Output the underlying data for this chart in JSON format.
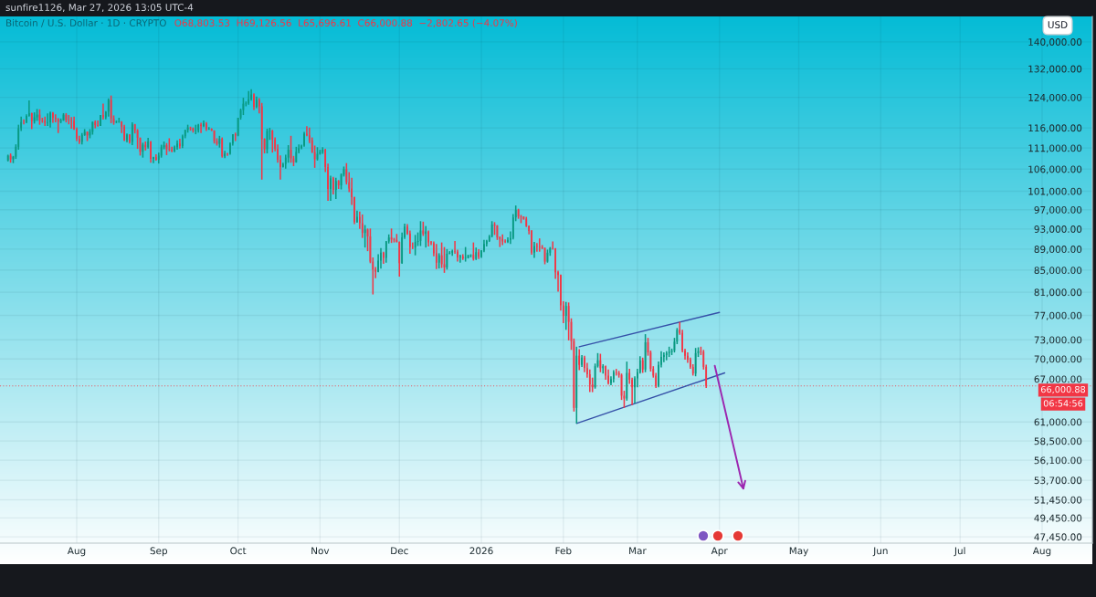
{
  "chart_data": {
    "type": "candlestick",
    "title": "Bitcoin / U.S. Dollar · 1D · CRYPTO",
    "subtitle": "O68,803.53  H69,126.56  L65,696.61  C66,000.88  −2,802.65 (−4.07%)",
    "ylabel": "USD",
    "annotations": [
      "sunfire1126, Mar 27, 2026 13:05 UTC-4",
      "06:54:56"
    ],
    "x": [
      "2025-07-06",
      "2025-07-07",
      "2025-07-08",
      "2025-07-09",
      "2025-07-10",
      "2025-07-11",
      "2025-07-12",
      "2025-07-13",
      "2025-07-14",
      "2025-07-15",
      "2025-07-16",
      "2025-07-17",
      "2025-07-18",
      "2025-07-19",
      "2025-07-20",
      "2025-07-21",
      "2025-07-22",
      "2025-07-23",
      "2025-07-24",
      "2025-07-25",
      "2025-07-26",
      "2025-07-27",
      "2025-07-28",
      "2025-07-29",
      "2025-07-30",
      "2025-07-31",
      "2025-08-01",
      "2025-08-02",
      "2025-08-03",
      "2025-08-04",
      "2025-08-05",
      "2025-08-06",
      "2025-08-07",
      "2025-08-08",
      "2025-08-09",
      "2025-08-10",
      "2025-08-11",
      "2025-08-12",
      "2025-08-13",
      "2025-08-14",
      "2025-08-15",
      "2025-08-16",
      "2025-08-17",
      "2025-08-18",
      "2025-08-19",
      "2025-08-20",
      "2025-08-21",
      "2025-08-22",
      "2025-08-23",
      "2025-08-24",
      "2025-08-25",
      "2025-08-26",
      "2025-08-27",
      "2025-08-28",
      "2025-08-29",
      "2025-08-30",
      "2025-08-31",
      "2025-09-01",
      "2025-09-02",
      "2025-09-03",
      "2025-09-04",
      "2025-09-05",
      "2025-09-06",
      "2025-09-07",
      "2025-09-08",
      "2025-09-09",
      "2025-09-10",
      "2025-09-11",
      "2025-09-12",
      "2025-09-13",
      "2025-09-14",
      "2025-09-15",
      "2025-09-16",
      "2025-09-17",
      "2025-09-18",
      "2025-09-19",
      "2025-09-20",
      "2025-09-21",
      "2025-09-22",
      "2025-09-23",
      "2025-09-24",
      "2025-09-25",
      "2025-09-26",
      "2025-09-27",
      "2025-09-28",
      "2025-09-29",
      "2025-09-30",
      "2025-10-01",
      "2025-10-02",
      "2025-10-03",
      "2025-10-04",
      "2025-10-05",
      "2025-10-06",
      "2025-10-07",
      "2025-10-08",
      "2025-10-09",
      "2025-10-10",
      "2025-10-11",
      "2025-10-12",
      "2025-10-13",
      "2025-10-14",
      "2025-10-15",
      "2025-10-16",
      "2025-10-17",
      "2025-10-18",
      "2025-10-19",
      "2025-10-20",
      "2025-10-21",
      "2025-10-22",
      "2025-10-23",
      "2025-10-24",
      "2025-10-25",
      "2025-10-26",
      "2025-10-27",
      "2025-10-28",
      "2025-10-29",
      "2025-10-30",
      "2025-10-31",
      "2025-11-01",
      "2025-11-02",
      "2025-11-03",
      "2025-11-04",
      "2025-11-05",
      "2025-11-06",
      "2025-11-07",
      "2025-11-08",
      "2025-11-09",
      "2025-11-10",
      "2025-11-11",
      "2025-11-12",
      "2025-11-13",
      "2025-11-14",
      "2025-11-15",
      "2025-11-16",
      "2025-11-17",
      "2025-11-18",
      "2025-11-19",
      "2025-11-20",
      "2025-11-21",
      "2025-11-22",
      "2025-11-23",
      "2025-11-24",
      "2025-11-25",
      "2025-11-26",
      "2025-11-27",
      "2025-11-28",
      "2025-11-29",
      "2025-11-30",
      "2025-12-01",
      "2025-12-02",
      "2025-12-03",
      "2025-12-04",
      "2025-12-05",
      "2025-12-06",
      "2025-12-07",
      "2025-12-08",
      "2025-12-09",
      "2025-12-10",
      "2025-12-11",
      "2025-12-12",
      "2025-12-13",
      "2025-12-14",
      "2025-12-15",
      "2025-12-16",
      "2025-12-17",
      "2025-12-18",
      "2025-12-19",
      "2025-12-20",
      "2025-12-21",
      "2025-12-22",
      "2025-12-23",
      "2025-12-24",
      "2025-12-25",
      "2025-12-26",
      "2025-12-27",
      "2025-12-28",
      "2025-12-29",
      "2025-12-30",
      "2025-12-31",
      "2026-01-01",
      "2026-01-02",
      "2026-01-03",
      "2026-01-04",
      "2026-01-05",
      "2026-01-06",
      "2026-01-07",
      "2026-01-08",
      "2026-01-09",
      "2026-01-10",
      "2026-01-11",
      "2026-01-12",
      "2026-01-13",
      "2026-01-14",
      "2026-01-15",
      "2026-01-16",
      "2026-01-17",
      "2026-01-18",
      "2026-01-19",
      "2026-01-20",
      "2026-01-21",
      "2026-01-22",
      "2026-01-23",
      "2026-01-24",
      "2026-01-25",
      "2026-01-26",
      "2026-01-27",
      "2026-01-28",
      "2026-01-29",
      "2026-01-30",
      "2026-01-31",
      "2026-02-01",
      "2026-02-02",
      "2026-02-03",
      "2026-02-04",
      "2026-02-05",
      "2026-02-06",
      "2026-02-07",
      "2026-02-08",
      "2026-02-09",
      "2026-02-10",
      "2026-02-11",
      "2026-02-12",
      "2026-02-13",
      "2026-02-14",
      "2026-02-15",
      "2026-02-16",
      "2026-02-17",
      "2026-02-18",
      "2026-02-19",
      "2026-02-20",
      "2026-02-21",
      "2026-02-22",
      "2026-02-23",
      "2026-02-24",
      "2026-02-25",
      "2026-02-26",
      "2026-02-27",
      "2026-02-28",
      "2026-03-01",
      "2026-03-02",
      "2026-03-03",
      "2026-03-04",
      "2026-03-05",
      "2026-03-06",
      "2026-03-07",
      "2026-03-08",
      "2026-03-09",
      "2026-03-10",
      "2026-03-11",
      "2026-03-12",
      "2026-03-13",
      "2026-03-14",
      "2026-03-15",
      "2026-03-16",
      "2026-03-17",
      "2026-03-18",
      "2026-03-19",
      "2026-03-20",
      "2026-03-21",
      "2026-03-22",
      "2026-03-23",
      "2026-03-24",
      "2026-03-25",
      "2026-03-26",
      "2026-03-27"
    ],
    "ohlc": [
      [
        108000,
        109400,
        107800,
        109200
      ],
      [
        109200,
        109700,
        107500,
        108300
      ],
      [
        108300,
        109100,
        107400,
        108900
      ],
      [
        108900,
        111900,
        108400,
        111300
      ],
      [
        111300,
        116800,
        110600,
        115900
      ],
      [
        115900,
        118900,
        115200,
        117500
      ],
      [
        117500,
        118200,
        116900,
        117400
      ],
      [
        117400,
        119500,
        117200,
        119100
      ],
      [
        119100,
        123200,
        118900,
        119800
      ],
      [
        119800,
        119900,
        115700,
        117700
      ],
      [
        117700,
        120000,
        117100,
        118700
      ],
      [
        118700,
        120900,
        117800,
        119400
      ],
      [
        119400,
        120800,
        116800,
        117900
      ],
      [
        117900,
        118600,
        117300,
        117800
      ],
      [
        117800,
        118900,
        116500,
        117300
      ],
      [
        117300,
        119700,
        116500,
        117400
      ],
      [
        117400,
        120200,
        116100,
        119900
      ],
      [
        119900,
        120100,
        117300,
        118600
      ],
      [
        118600,
        119500,
        117400,
        118300
      ],
      [
        118300,
        118500,
        114700,
        117600
      ],
      [
        117600,
        118400,
        117200,
        117900
      ],
      [
        117900,
        119800,
        117800,
        119400
      ],
      [
        119400,
        119800,
        117400,
        118000
      ],
      [
        118000,
        119300,
        116900,
        117900
      ],
      [
        117900,
        118800,
        115800,
        117800
      ],
      [
        117800,
        118900,
        115500,
        115700
      ],
      [
        115700,
        116100,
        112700,
        113300
      ],
      [
        113300,
        114000,
        112000,
        112500
      ],
      [
        112500,
        114700,
        111900,
        114200
      ],
      [
        114200,
        115700,
        114000,
        115000
      ],
      [
        115000,
        115100,
        112700,
        114100
      ],
      [
        114100,
        115700,
        113400,
        115000
      ],
      [
        115000,
        117600,
        114300,
        117500
      ],
      [
        117500,
        117900,
        115900,
        116700
      ],
      [
        116700,
        117900,
        116300,
        116500
      ],
      [
        116500,
        119300,
        116500,
        119300
      ],
      [
        119300,
        122300,
        118100,
        118700
      ],
      [
        118700,
        120300,
        118200,
        120200
      ],
      [
        120200,
        123700,
        118900,
        123300
      ],
      [
        123300,
        124500,
        117200,
        118400
      ],
      [
        118400,
        119200,
        116800,
        117400
      ],
      [
        117400,
        117900,
        117200,
        117500
      ],
      [
        117500,
        118600,
        117300,
        117600
      ],
      [
        117600,
        117700,
        114700,
        116300
      ],
      [
        116300,
        116800,
        112700,
        112900
      ],
      [
        112900,
        114600,
        112400,
        114300
      ],
      [
        114300,
        114400,
        112100,
        112500
      ],
      [
        112500,
        117400,
        111700,
        116900
      ],
      [
        116900,
        117000,
        114600,
        115400
      ],
      [
        115400,
        115700,
        110800,
        113500
      ],
      [
        113500,
        113600,
        109200,
        110100
      ],
      [
        110100,
        112300,
        108700,
        111800
      ],
      [
        111800,
        112600,
        110400,
        111200
      ],
      [
        111200,
        113500,
        110900,
        112600
      ],
      [
        112600,
        112700,
        107500,
        108400
      ],
      [
        108400,
        108900,
        107400,
        108800
      ],
      [
        108800,
        109500,
        108000,
        108200
      ],
      [
        108200,
        109900,
        107300,
        109200
      ],
      [
        109200,
        111800,
        108700,
        111200
      ],
      [
        111200,
        112600,
        110700,
        111700
      ],
      [
        111700,
        112200,
        109300,
        110700
      ],
      [
        110700,
        113400,
        110200,
        110600
      ],
      [
        110600,
        111300,
        110000,
        110200
      ],
      [
        110200,
        111600,
        110000,
        111200
      ],
      [
        111200,
        112900,
        110600,
        112100
      ],
      [
        112100,
        113300,
        110900,
        111500
      ],
      [
        111500,
        114300,
        111000,
        113900
      ],
      [
        113900,
        115500,
        113400,
        115500
      ],
      [
        115500,
        116800,
        114800,
        116100
      ],
      [
        116100,
        116300,
        115300,
        115900
      ],
      [
        115900,
        116100,
        114800,
        115300
      ],
      [
        115300,
        116800,
        114400,
        115400
      ],
      [
        115400,
        117000,
        114800,
        116800
      ],
      [
        116800,
        117300,
        114700,
        116500
      ],
      [
        116500,
        117900,
        116200,
        117100
      ],
      [
        117100,
        117500,
        115200,
        115700
      ],
      [
        115700,
        116200,
        115500,
        115800
      ],
      [
        115800,
        115900,
        115200,
        115300
      ],
      [
        115300,
        115400,
        112100,
        112700
      ],
      [
        112700,
        113400,
        111600,
        112000
      ],
      [
        112000,
        114000,
        111100,
        113300
      ],
      [
        113300,
        113600,
        108700,
        109000
      ],
      [
        109000,
        110300,
        108600,
        109700
      ],
      [
        109700,
        109800,
        109100,
        109600
      ],
      [
        109600,
        112400,
        109400,
        112100
      ],
      [
        112100,
        114400,
        111600,
        114400
      ],
      [
        114400,
        114800,
        112700,
        114100
      ],
      [
        114100,
        118600,
        113900,
        118600
      ],
      [
        118600,
        121000,
        118100,
        120600
      ],
      [
        120600,
        123900,
        119300,
        122300
      ],
      [
        122300,
        122900,
        121600,
        122400
      ],
      [
        122400,
        125700,
        122000,
        123500
      ],
      [
        123500,
        126200,
        123100,
        124800
      ],
      [
        124800,
        125100,
        120600,
        121500
      ],
      [
        121500,
        124200,
        121100,
        123300
      ],
      [
        123300,
        123800,
        119700,
        121600
      ],
      [
        121600,
        122500,
        103600,
        113200
      ],
      [
        113200,
        113400,
        109700,
        110700
      ],
      [
        110700,
        115800,
        109700,
        115200
      ],
      [
        115200,
        116000,
        113000,
        115300
      ],
      [
        115300,
        115500,
        109900,
        113100
      ],
      [
        113100,
        113600,
        110200,
        110800
      ],
      [
        110800,
        111900,
        107500,
        108200
      ],
      [
        108200,
        109200,
        103600,
        106500
      ],
      [
        106500,
        107500,
        106400,
        107200
      ],
      [
        107200,
        109400,
        106100,
        108700
      ],
      [
        108700,
        111700,
        107500,
        110600
      ],
      [
        110600,
        114000,
        107500,
        108500
      ],
      [
        108500,
        109100,
        106700,
        107600
      ],
      [
        107600,
        111300,
        107500,
        110100
      ],
      [
        110100,
        111900,
        109700,
        111000
      ],
      [
        111000,
        111800,
        110700,
        111600
      ],
      [
        111600,
        115000,
        111300,
        114500
      ],
      [
        114500,
        116400,
        113900,
        114100
      ],
      [
        114100,
        116100,
        112200,
        112900
      ],
      [
        112900,
        113600,
        109800,
        110000
      ],
      [
        110000,
        111600,
        106300,
        108300
      ],
      [
        108300,
        111200,
        108000,
        109600
      ],
      [
        109600,
        110600,
        109400,
        110100
      ],
      [
        110100,
        111200,
        109600,
        110600
      ],
      [
        110600,
        110800,
        105300,
        106500
      ],
      [
        106500,
        107300,
        98900,
        101500
      ],
      [
        101500,
        104500,
        98900,
        103900
      ],
      [
        103900,
        104200,
        100300,
        101300
      ],
      [
        101300,
        104000,
        99300,
        103300
      ],
      [
        103300,
        103500,
        101500,
        102300
      ],
      [
        102300,
        105000,
        101400,
        104700
      ],
      [
        104700,
        106600,
        104300,
        106000
      ],
      [
        106000,
        107400,
        102500,
        103000
      ],
      [
        103000,
        105300,
        100800,
        101600
      ],
      [
        101600,
        104000,
        98000,
        99700
      ],
      [
        99700,
        99800,
        94000,
        94400
      ],
      [
        94400,
        96800,
        94300,
        95500
      ],
      [
        95500,
        96600,
        93000,
        94200
      ],
      [
        94200,
        96000,
        91200,
        92200
      ],
      [
        92200,
        93800,
        89300,
        92900
      ],
      [
        92900,
        93100,
        88600,
        91500
      ],
      [
        91500,
        93100,
        86300,
        86600
      ],
      [
        86600,
        87400,
        80600,
        85100
      ],
      [
        85100,
        85600,
        83500,
        84700
      ],
      [
        84700,
        88000,
        84600,
        86800
      ],
      [
        86800,
        89200,
        85300,
        88300
      ],
      [
        88300,
        88500,
        86200,
        87300
      ],
      [
        87300,
        90600,
        86400,
        90500
      ],
      [
        90500,
        91900,
        90100,
        91300
      ],
      [
        91300,
        93100,
        90200,
        90900
      ],
      [
        90900,
        91200,
        90300,
        90800
      ],
      [
        90800,
        92000,
        90300,
        90400
      ],
      [
        90400,
        90500,
        83800,
        86300
      ],
      [
        86300,
        92300,
        86200,
        91300
      ],
      [
        91300,
        94100,
        91000,
        93500
      ],
      [
        93500,
        94000,
        91800,
        92100
      ],
      [
        92100,
        92700,
        88100,
        89400
      ],
      [
        89400,
        90300,
        89000,
        89300
      ],
      [
        89300,
        91800,
        87800,
        90400
      ],
      [
        90400,
        92300,
        89600,
        90600
      ],
      [
        90600,
        94600,
        89600,
        92700
      ],
      [
        92700,
        94500,
        91600,
        92000
      ],
      [
        92000,
        93600,
        89300,
        92500
      ],
      [
        92500,
        92700,
        89500,
        90300
      ],
      [
        90300,
        90600,
        89800,
        90200
      ],
      [
        90200,
        90500,
        87600,
        88200
      ],
      [
        88200,
        90000,
        85200,
        86400
      ],
      [
        86400,
        88200,
        85300,
        87800
      ],
      [
        87800,
        90300,
        85400,
        86100
      ],
      [
        86100,
        89400,
        84500,
        85500
      ],
      [
        85500,
        89000,
        85100,
        88100
      ],
      [
        88100,
        88600,
        88000,
        88300
      ],
      [
        88300,
        88900,
        87700,
        88600
      ],
      [
        88600,
        90600,
        88100,
        88500
      ],
      [
        88500,
        88900,
        86600,
        87400
      ],
      [
        87400,
        87900,
        86400,
        87600
      ],
      [
        87600,
        88000,
        86900,
        87200
      ],
      [
        87200,
        89400,
        86600,
        87300
      ],
      [
        87300,
        87900,
        87200,
        87800
      ],
      [
        87800,
        88000,
        87400,
        87900
      ],
      [
        87900,
        90300,
        86800,
        87100
      ],
      [
        87100,
        89300,
        86900,
        88400
      ],
      [
        88400,
        89000,
        87100,
        87500
      ],
      [
        87500,
        88800,
        87300,
        88700
      ],
      [
        88700,
        90800,
        88400,
        90000
      ],
      [
        90000,
        90800,
        89500,
        90600
      ],
      [
        90600,
        91800,
        90400,
        91500
      ],
      [
        91500,
        94600,
        91300,
        93900
      ],
      [
        93900,
        94400,
        91800,
        93700
      ],
      [
        93700,
        93800,
        90800,
        91300
      ],
      [
        91300,
        91500,
        89400,
        91000
      ],
      [
        91000,
        91900,
        89800,
        90500
      ],
      [
        90500,
        90900,
        90200,
        90400
      ],
      [
        90400,
        91300,
        90200,
        90800
      ],
      [
        90800,
        92500,
        90000,
        91200
      ],
      [
        91200,
        96100,
        90900,
        95400
      ],
      [
        95400,
        97900,
        94600,
        97000
      ],
      [
        97000,
        97200,
        95100,
        95600
      ],
      [
        95600,
        95900,
        94200,
        95500
      ],
      [
        95500,
        95600,
        94900,
        95100
      ],
      [
        95100,
        95500,
        93400,
        93600
      ],
      [
        93600,
        93700,
        91900,
        92600
      ],
      [
        92600,
        92800,
        87900,
        88300
      ],
      [
        88300,
        90400,
        87300,
        89600
      ],
      [
        89600,
        90200,
        88500,
        89500
      ],
      [
        89500,
        91100,
        88500,
        89400
      ],
      [
        89400,
        89800,
        89000,
        89200
      ],
      [
        89200,
        89300,
        86100,
        86600
      ],
      [
        86600,
        88900,
        86400,
        88300
      ],
      [
        88300,
        89400,
        87700,
        89200
      ],
      [
        89200,
        90500,
        88900,
        89100
      ],
      [
        89100,
        89200,
        83400,
        84600
      ],
      [
        84600,
        84900,
        81100,
        84100
      ],
      [
        84100,
        84200,
        77800,
        78700
      ],
      [
        78700,
        79400,
        75700,
        76900
      ],
      [
        76900,
        79300,
        74600,
        78600
      ],
      [
        78600,
        79200,
        72900,
        75900
      ],
      [
        75900,
        76500,
        71400,
        72800
      ],
      [
        72800,
        73200,
        62400,
        62900
      ],
      [
        62900,
        71900,
        60800,
        70500
      ],
      [
        70500,
        71500,
        68300,
        69100
      ],
      [
        69100,
        70600,
        68800,
        70200
      ],
      [
        70200,
        70500,
        68000,
        68600
      ],
      [
        68600,
        69400,
        67200,
        67700
      ],
      [
        67700,
        68400,
        65100,
        66200
      ],
      [
        66200,
        67200,
        65100,
        65800
      ],
      [
        65800,
        69300,
        65600,
        68900
      ],
      [
        68900,
        70900,
        68700,
        69800
      ],
      [
        69800,
        70800,
        68000,
        68600
      ],
      [
        68600,
        69200,
        67800,
        68900
      ],
      [
        68900,
        69000,
        66900,
        67500
      ],
      [
        67500,
        68400,
        66200,
        66400
      ],
      [
        66400,
        67400,
        66100,
        67000
      ],
      [
        67000,
        68300,
        66500,
        68000
      ],
      [
        68000,
        68500,
        67500,
        67900
      ],
      [
        67900,
        68200,
        67200,
        67600
      ],
      [
        67600,
        67800,
        64000,
        64600
      ],
      [
        64600,
        65300,
        62900,
        64200
      ],
      [
        64200,
        69600,
        63900,
        67900
      ],
      [
        67900,
        68500,
        66300,
        66900
      ],
      [
        66900,
        67200,
        63300,
        65800
      ],
      [
        65800,
        67400,
        63500,
        67100
      ],
      [
        67100,
        68500,
        65800,
        68000
      ],
      [
        68000,
        70400,
        67800,
        69800
      ],
      [
        69800,
        70200,
        67900,
        68400
      ],
      [
        68400,
        73900,
        68000,
        72600
      ],
      [
        72600,
        73300,
        70500,
        71000
      ],
      [
        71000,
        71300,
        68100,
        68500
      ],
      [
        68500,
        68900,
        67200,
        67500
      ],
      [
        67500,
        67900,
        65700,
        66000
      ],
      [
        66000,
        69600,
        65800,
        69100
      ],
      [
        69100,
        71200,
        68700,
        70300
      ],
      [
        70300,
        71000,
        69500,
        70600
      ],
      [
        70600,
        71200,
        69800,
        70900
      ],
      [
        70900,
        71900,
        70300,
        71100
      ],
      [
        71100,
        71600,
        70600,
        71300
      ],
      [
        71300,
        73300,
        71000,
        72700
      ],
      [
        72700,
        74900,
        72300,
        74600
      ],
      [
        74600,
        75900,
        73800,
        74100
      ],
      [
        74100,
        74600,
        71000,
        71300
      ],
      [
        71300,
        71600,
        69900,
        70500
      ],
      [
        70500,
        71000,
        69400,
        69900
      ],
      [
        69900,
        70200,
        68500,
        68800
      ],
      [
        68800,
        69200,
        67500,
        67800
      ],
      [
        67800,
        71700,
        67400,
        70900
      ],
      [
        70900,
        71800,
        70300,
        71200
      ],
      [
        71200,
        71900,
        70600,
        71100
      ],
      [
        71100,
        71400,
        68400,
        68800
      ],
      [
        68803.53,
        69126.56,
        65696.61,
        66000.88
      ]
    ],
    "colors": [
      "#089981",
      "#f23645",
      "#089981",
      "#089981",
      "#089981",
      "#089981",
      "#f23645",
      "#089981",
      "#089981",
      "#f23645",
      "#089981",
      "#089981",
      "#f23645",
      "#f23645",
      "#f23645",
      "#089981",
      "#089981",
      "#f23645",
      "#f23645",
      "#f23645",
      "#089981",
      "#089981",
      "#f23645",
      "#f23645",
      "#f23645",
      "#f23645",
      "#f23645",
      "#f23645",
      "#089981",
      "#089981",
      "#f23645",
      "#089981",
      "#089981",
      "#f23645",
      "#f23645",
      "#089981",
      "#f23645",
      "#089981",
      "#089981",
      "#f23645",
      "#f23645",
      "#089981",
      "#089981",
      "#f23645",
      "#f23645",
      "#089981",
      "#f23645",
      "#089981",
      "#f23645",
      "#f23645",
      "#f23645",
      "#089981",
      "#f23645",
      "#089981",
      "#f23645",
      "#089981",
      "#f23645",
      "#089981",
      "#089981",
      "#089981",
      "#f23645",
      "#f23645",
      "#f23645",
      "#089981",
      "#089981",
      "#f23645",
      "#089981",
      "#089981",
      "#089981",
      "#f23645",
      "#f23645",
      "#089981",
      "#089981",
      "#f23645",
      "#089981",
      "#f23645",
      "#089981",
      "#f23645",
      "#f23645",
      "#f23645",
      "#089981",
      "#f23645",
      "#089981",
      "#f23645",
      "#089981",
      "#089981",
      "#f23645",
      "#089981",
      "#089981",
      "#089981",
      "#089981",
      "#089981",
      "#089981",
      "#f23645",
      "#089981",
      "#f23645",
      "#f23645",
      "#f23645",
      "#089981",
      "#089981",
      "#f23645",
      "#f23645",
      "#f23645",
      "#f23645",
      "#089981",
      "#089981",
      "#089981",
      "#f23645",
      "#f23645",
      "#089981",
      "#089981",
      "#089981",
      "#089981",
      "#f23645",
      "#f23645",
      "#f23645",
      "#f23645",
      "#089981",
      "#089981",
      "#089981",
      "#f23645",
      "#f23645",
      "#089981",
      "#f23645",
      "#089981",
      "#f23645",
      "#089981",
      "#089981",
      "#f23645",
      "#f23645",
      "#f23645",
      "#f23645",
      "#089981",
      "#f23645",
      "#f23645",
      "#089981",
      "#f23645",
      "#f23645",
      "#f23645",
      "#f23645",
      "#089981",
      "#089981",
      "#f23645",
      "#089981",
      "#089981",
      "#f23645",
      "#f23645",
      "#f23645",
      "#f23645",
      "#089981",
      "#089981",
      "#f23645",
      "#f23645",
      "#f23645",
      "#089981",
      "#089981",
      "#089981",
      "#f23645",
      "#089981",
      "#f23645",
      "#f23645",
      "#f23645",
      "#f23645",
      "#089981",
      "#f23645",
      "#f23645",
      "#089981",
      "#089981",
      "#089981",
      "#f23645",
      "#f23645",
      "#089981",
      "#f23645",
      "#089981",
      "#089981",
      "#089981",
      "#f23645",
      "#089981",
      "#f23645",
      "#089981",
      "#089981",
      "#089981",
      "#089981",
      "#089981",
      "#f23645",
      "#f23645",
      "#f23645",
      "#f23645",
      "#f23645",
      "#089981",
      "#089981",
      "#089981",
      "#089981",
      "#f23645",
      "#f23645",
      "#f23645",
      "#f23645",
      "#f23645",
      "#f23645",
      "#089981",
      "#f23645",
      "#f23645",
      "#f23645",
      "#f23645",
      "#089981",
      "#089981",
      "#f23645",
      "#f23645",
      "#f23645",
      "#f23645",
      "#f23645",
      "#089981",
      "#f23645",
      "#f23645",
      "#f23645",
      "#089981",
      "#f23645",
      "#089981",
      "#f23645",
      "#f23645",
      "#f23645",
      "#f23645",
      "#089981",
      "#089981",
      "#f23645",
      "#089981",
      "#f23645",
      "#f23645",
      "#089981",
      "#089981",
      "#f23645",
      "#f23645",
      "#f23645",
      "#f23645",
      "#089981",
      "#f23645",
      "#f23645",
      "#089981",
      "#089981",
      "#089981",
      "#f23645",
      "#089981",
      "#f23645",
      "#f23645",
      "#f23645",
      "#f23645",
      "#089981",
      "#089981",
      "#089981",
      "#089981",
      "#089981",
      "#089981",
      "#089981",
      "#089981",
      "#f23645",
      "#f23645",
      "#f23645",
      "#f23645",
      "#f23645",
      "#f23645",
      "#089981",
      "#089981",
      "#f23645",
      "#f23645",
      "#f23645"
    ],
    "series": [
      {
        "type": "line",
        "x": [
          "2026-02-07",
          "2026-04-01"
        ],
        "values": [
          71900,
          77500
        ],
        "color": "#3550a8"
      },
      {
        "type": "line",
        "x": [
          "2026-02-06",
          "2026-04-03"
        ],
        "values": [
          60800,
          67900
        ],
        "color": "#3550a8"
      }
    ],
    "ref_lines": [
      {
        "axis": "y",
        "value": 66000.88,
        "label": "66,000.88",
        "color": "#f23645",
        "line_style": "dotted"
      }
    ],
    "xlim": [
      "2025-07-03",
      "2026-08-20"
    ],
    "ylim": [
      46800,
      148000
    ],
    "log": true,
    "grid": true,
    "xticks": [
      {
        "value": "2025-08-01",
        "label": "Aug"
      },
      {
        "value": "2025-09-01",
        "label": "Sep"
      },
      {
        "value": "2025-10-01",
        "label": "Oct"
      },
      {
        "value": "2025-11-01",
        "label": "Nov"
      },
      {
        "value": "2025-12-01",
        "label": "Dec"
      },
      {
        "value": "2026-01-01",
        "label": "2026"
      },
      {
        "value": "2026-02-01",
        "label": "Feb"
      },
      {
        "value": "2026-03-01",
        "label": "Mar"
      },
      {
        "value": "2026-04-01",
        "label": "Apr"
      },
      {
        "value": "2026-05-01",
        "label": "May"
      },
      {
        "value": "2026-06-01",
        "label": "Jun"
      },
      {
        "value": "2026-07-01",
        "label": "Jul"
      },
      {
        "value": "2026-08-01",
        "label": "Aug"
      }
    ],
    "yticks": [
      {
        "value": 47450,
        "label": "47,450.00"
      },
      {
        "value": 49450,
        "label": "49,450.00"
      },
      {
        "value": 51450,
        "label": "51,450.00"
      },
      {
        "value": 53700,
        "label": "53,700.00"
      },
      {
        "value": 56100,
        "label": "56,100.00"
      },
      {
        "value": 58500,
        "label": "58,500.00"
      },
      {
        "value": 61000,
        "label": "61,000.00"
      },
      {
        "value": 67000,
        "label": "67,000.00"
      },
      {
        "value": 70000,
        "label": "70,000.00"
      },
      {
        "value": 73000,
        "label": "73,000.00"
      },
      {
        "value": 77000,
        "label": "77,000.00"
      },
      {
        "value": 81000,
        "label": "81,000.00"
      },
      {
        "value": 85000,
        "label": "85,000.00"
      },
      {
        "value": 89000,
        "label": "89,000.00"
      },
      {
        "value": 93000,
        "label": "93,000.00"
      },
      {
        "value": 97000,
        "label": "97,000.00"
      },
      {
        "value": 101000,
        "label": "101,000.00"
      },
      {
        "value": 106000,
        "label": "106,000.00"
      },
      {
        "value": 111000,
        "label": "111,000.00"
      },
      {
        "value": 116000,
        "label": "116,000.00"
      },
      {
        "value": 124000,
        "label": "124,000.00"
      },
      {
        "value": 132000,
        "label": "132,000.00"
      },
      {
        "value": 140000,
        "label": "140,000.00"
      }
    ]
  }
}
